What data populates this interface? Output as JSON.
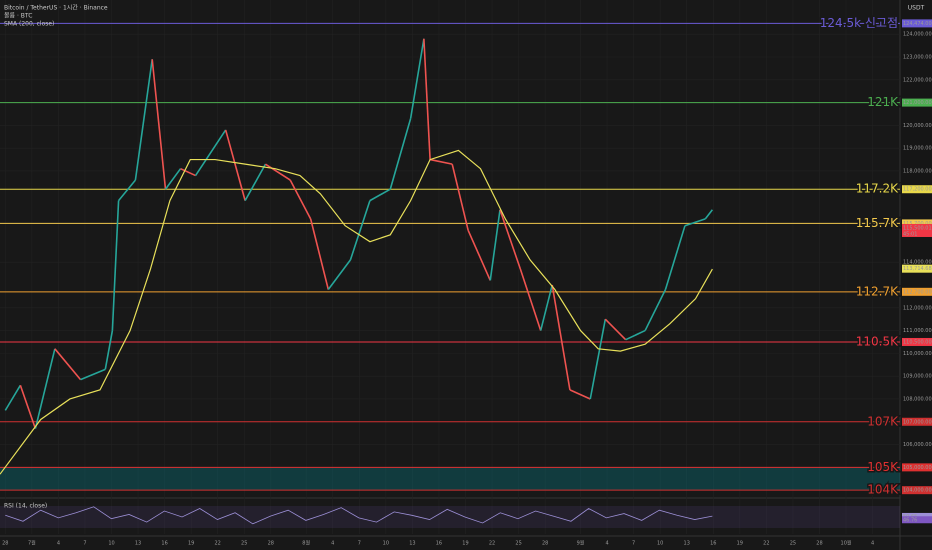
{
  "header": {
    "symbol": "Bitcoin / TetherUS · 1시간 · Binance",
    "volume": "볼륨 · BTC",
    "indicator": "SMA (200, close)",
    "currency": "USDT"
  },
  "chart_data": {
    "type": "line",
    "xlim": [
      -0.6,
      101.1
    ],
    "xticks": [
      {
        "value": 0,
        "label": "28"
      },
      {
        "value": 3,
        "label": "7월"
      },
      {
        "value": 6,
        "label": "4"
      },
      {
        "value": 9,
        "label": "7"
      },
      {
        "value": 12,
        "label": "10"
      },
      {
        "value": 15,
        "label": "13"
      },
      {
        "value": 18,
        "label": "16"
      },
      {
        "value": 21,
        "label": "19"
      },
      {
        "value": 24,
        "label": "22"
      },
      {
        "value": 27,
        "label": "25"
      },
      {
        "value": 30,
        "label": "28"
      },
      {
        "value": 34,
        "label": "8월"
      },
      {
        "value": 37,
        "label": "4"
      },
      {
        "value": 40,
        "label": "7"
      },
      {
        "value": 43,
        "label": "10"
      },
      {
        "value": 46,
        "label": "13"
      },
      {
        "value": 49,
        "label": "16"
      },
      {
        "value": 52,
        "label": "19"
      },
      {
        "value": 55,
        "label": "22"
      },
      {
        "value": 58,
        "label": "25"
      },
      {
        "value": 61,
        "label": "28"
      },
      {
        "value": 65,
        "label": "9월"
      },
      {
        "value": 68,
        "label": "4"
      },
      {
        "value": 71,
        "label": "7"
      },
      {
        "value": 74,
        "label": "10"
      },
      {
        "value": 77,
        "label": "13"
      },
      {
        "value": 80,
        "label": "16"
      },
      {
        "value": 83,
        "label": "19"
      },
      {
        "value": 86,
        "label": "22"
      },
      {
        "value": 89,
        "label": "25"
      },
      {
        "value": 92,
        "label": "28"
      },
      {
        "value": 95,
        "label": "10월"
      },
      {
        "value": 98,
        "label": "4"
      }
    ],
    "ylim": [
      103700,
      125500
    ],
    "yticks": [
      {
        "value": 124000,
        "label": "124,000.00"
      },
      {
        "value": 123000,
        "label": "123,000.00"
      },
      {
        "value": 122000,
        "label": "122,000.00"
      },
      {
        "value": 120000,
        "label": "120,000.00"
      },
      {
        "value": 119000,
        "label": "119,000.00"
      },
      {
        "value": 118000,
        "label": "118,000.00"
      },
      {
        "value": 114000,
        "label": "114,000.00"
      },
      {
        "value": 112000,
        "label": "112,000.00"
      },
      {
        "value": 111000,
        "label": "111,000.00"
      },
      {
        "value": 110000,
        "label": "110,000.00"
      },
      {
        "value": 109000,
        "label": "109,000.00"
      },
      {
        "value": 108000,
        "label": "108,000.00"
      },
      {
        "value": 106000,
        "label": "106,000.00"
      }
    ],
    "grid": true,
    "series": [
      {
        "name": "Bitcoin / TetherUS",
        "up_color": "#26a69a",
        "down_color": "#ef5350",
        "x": [
          0,
          1.7,
          3.4,
          5.6,
          8.5,
          11.3,
          12.1,
          12.8,
          14.7,
          16.6,
          18.1,
          19.8,
          21.5,
          24.9,
          27.1,
          29.4,
          32.2,
          34.5,
          36.5,
          39,
          41.2,
          43.5,
          45.8,
          47.3,
          48,
          50.5,
          52.3,
          54.8,
          55.9,
          58.2,
          60.5,
          61.8,
          63.8,
          66.1,
          67.8,
          70.1,
          72.3,
          74.6,
          76.8,
          79.1,
          79.9
        ],
        "values": [
          107500,
          108600,
          106700,
          110200,
          108850,
          109300,
          111000,
          116700,
          117600,
          122900,
          117200,
          118100,
          117800,
          119800,
          116700,
          118300,
          117600,
          115900,
          112800,
          114100,
          116700,
          117200,
          120300,
          123800,
          118500,
          118300,
          115400,
          113200,
          116300,
          113700,
          111000,
          113000,
          108400,
          108000,
          111500,
          110600,
          111000,
          112800,
          115600,
          115900,
          116300
        ]
      },
      {
        "name": "SMA (200, close)",
        "color": "#e8e05a",
        "x": [
          -0.6,
          4,
          7.3,
          10.7,
          14.1,
          16.4,
          18.6,
          20.9,
          23.7,
          27.1,
          30.5,
          33.3,
          35.6,
          38.4,
          41.2,
          43.5,
          45.8,
          48,
          51.2,
          53.7,
          56.5,
          59.3,
          62.1,
          65,
          67,
          69.5,
          72.3,
          75.1,
          78,
          79.9
        ],
        "values": [
          104700,
          107100,
          108000,
          108400,
          111000,
          113700,
          116700,
          118500,
          118500,
          118300,
          118100,
          117800,
          117000,
          115600,
          114900,
          115200,
          116700,
          118500,
          118900,
          118100,
          115900,
          114100,
          112800,
          111000,
          110200,
          110100,
          110400,
          111300,
          112400,
          113700
        ]
      }
    ],
    "levels": [
      {
        "value": 124474,
        "label": "124.5k 신고점",
        "axis_label": "124,474.00",
        "color": "#6b5bd6"
      },
      {
        "value": 121000,
        "label": "121K",
        "axis_label": "121,000.00",
        "color": "#4caf50"
      },
      {
        "value": 117200,
        "label": "117.2K",
        "axis_label": "117,200.00",
        "color": "#e8d84a"
      },
      {
        "value": 115700,
        "label": "115.7K",
        "axis_label": "115,700.00",
        "color": "#f2c94c"
      },
      {
        "value": 112700,
        "label": "112.7K",
        "axis_label": "112,700.00",
        "color": "#f0a030"
      },
      {
        "value": 110500,
        "label": "110.5K",
        "axis_label": "110,500.00",
        "color": "#f23645"
      },
      {
        "value": 107000,
        "label": "107K",
        "axis_label": "107,000.00",
        "color": "#d03030"
      },
      {
        "value": 105000,
        "label": "105K",
        "axis_label": "105,000.00",
        "color": "#e03030"
      },
      {
        "value": 104000,
        "label": "104K",
        "axis_label": "104,000.00",
        "color": "#d03030"
      }
    ],
    "price_tag": {
      "value": 115500.01,
      "label": "115,500.01",
      "countdown": "45:01",
      "color": "#f23645"
    },
    "sma_tag": {
      "value": 113714.68,
      "label": "113,714.68",
      "color": "#e8e05a"
    },
    "rsi": {
      "title": "RSI (14, close)",
      "color": "#9c8fd6",
      "ylim": [
        30,
        70
      ],
      "values": [
        52,
        45,
        58,
        49,
        55,
        62,
        48,
        53,
        44,
        57,
        50,
        60,
        47,
        55,
        42,
        51,
        58,
        46,
        53,
        61,
        49,
        44,
        56,
        52,
        47,
        59,
        50,
        43,
        55,
        48,
        57,
        51,
        45,
        60,
        49,
        54,
        46,
        58,
        52,
        47,
        51
      ],
      "tags": [
        {
          "value": 50.65,
          "label": "50.65",
          "color": "#9c8fd6"
        },
        {
          "value": 46.76,
          "label": "46.76",
          "color": "#7e57c2"
        }
      ]
    }
  }
}
